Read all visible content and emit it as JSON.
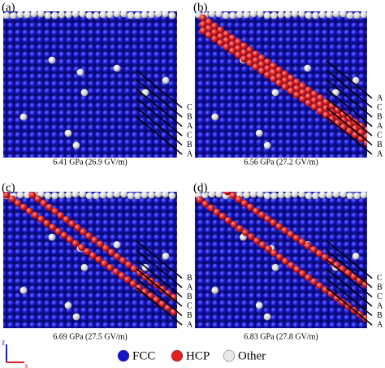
{
  "panels": [
    {
      "label": "(a)",
      "caption": "6.41 GPa (26.9 GV/m)",
      "stacking": [
        "C",
        "B",
        "A",
        "C",
        "B",
        "A"
      ]
    },
    {
      "label": "(b)",
      "caption": "6.56 GPa (27.2 GV/m)",
      "stacking": [
        "A",
        "C",
        "B",
        "A",
        "C",
        "B",
        "A"
      ]
    },
    {
      "label": "(c)",
      "caption": "6.69 GPa (27.5 GV/m)",
      "stacking": [
        "B",
        "A",
        "B",
        "C",
        "B",
        "A"
      ]
    },
    {
      "label": "(d)",
      "caption": "6.83 GPa (27.8 GV/m)",
      "stacking": [
        "C",
        "B",
        "C",
        "A",
        "B",
        "A"
      ]
    }
  ],
  "axes": {
    "z": "z",
    "x": "x"
  },
  "legend": [
    {
      "label": "FCC",
      "color": "#1515c8"
    },
    {
      "label": "HCP",
      "color": "#e02020"
    },
    {
      "label": "Other",
      "color": "#e8e8e8"
    }
  ]
}
